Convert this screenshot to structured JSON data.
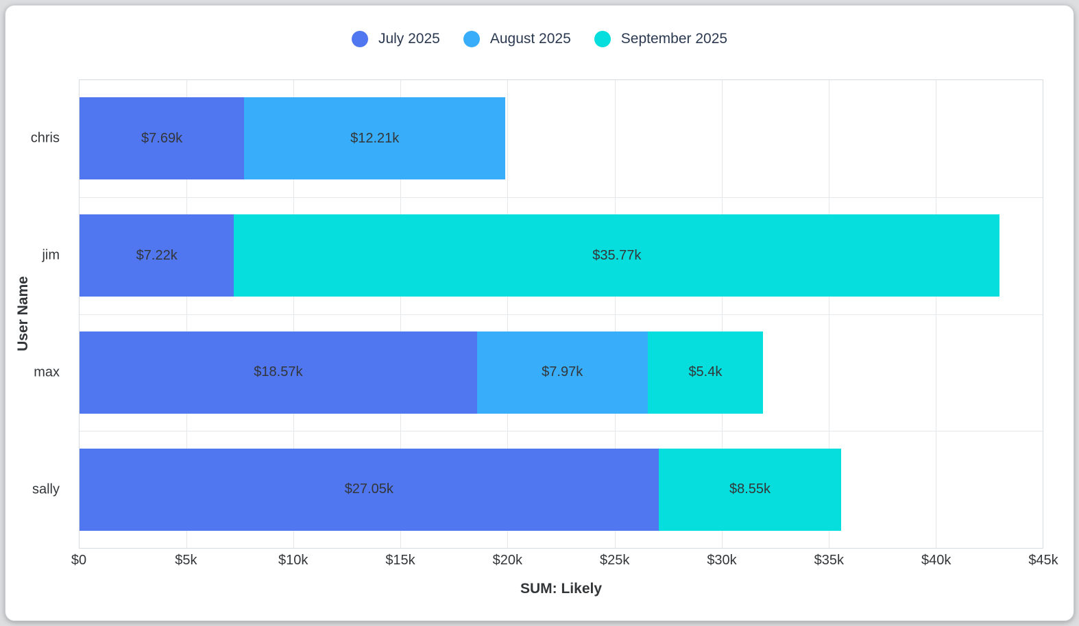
{
  "legend": {
    "items": [
      {
        "label": "July 2025",
        "color": "#5076f0"
      },
      {
        "label": "August 2025",
        "color": "#38adfa"
      },
      {
        "label": "September 2025",
        "color": "#05dedc"
      }
    ]
  },
  "chart_data": {
    "type": "bar",
    "orientation": "horizontal",
    "stacked": true,
    "title": "",
    "xlabel": "SUM: Likely",
    "ylabel": "User Name",
    "xlim": [
      0,
      45000
    ],
    "grid": true,
    "legend_position": "top",
    "x_ticks": [
      {
        "value": 0,
        "label": "$0"
      },
      {
        "value": 5000,
        "label": "$5k"
      },
      {
        "value": 10000,
        "label": "$10k"
      },
      {
        "value": 15000,
        "label": "$15k"
      },
      {
        "value": 20000,
        "label": "$20k"
      },
      {
        "value": 25000,
        "label": "$25k"
      },
      {
        "value": 30000,
        "label": "$30k"
      },
      {
        "value": 35000,
        "label": "$35k"
      },
      {
        "value": 40000,
        "label": "$40k"
      },
      {
        "value": 45000,
        "label": "$45k"
      }
    ],
    "categories": [
      "chris",
      "jim",
      "max",
      "sally"
    ],
    "series": [
      {
        "name": "July 2025",
        "color": "#5076f0",
        "values": [
          7690,
          7220,
          18570,
          27050
        ],
        "labels": [
          "$7.69k",
          "$7.22k",
          "$18.57k",
          "$27.05k"
        ]
      },
      {
        "name": "August 2025",
        "color": "#38adfa",
        "values": [
          12210,
          0,
          7970,
          0
        ],
        "labels": [
          "$12.21k",
          null,
          "$7.97k",
          null
        ]
      },
      {
        "name": "September 2025",
        "color": "#05dedc",
        "values": [
          0,
          35770,
          5400,
          8550
        ],
        "labels": [
          null,
          "$35.77k",
          "$5.4k",
          "$8.55k"
        ]
      }
    ]
  }
}
